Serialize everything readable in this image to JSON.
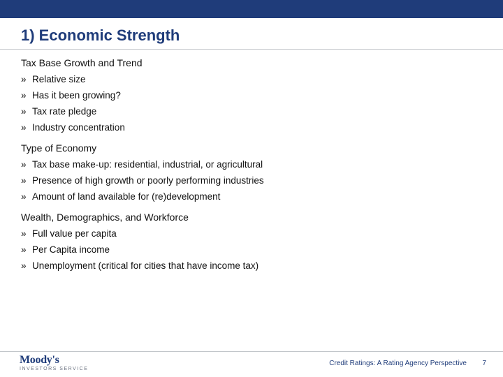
{
  "brand_color": "#1f3c7a",
  "title": "1) Economic Strength",
  "sections": [
    {
      "heading": "Tax Base Growth and Trend",
      "items": [
        "Relative size",
        "Has it been growing?",
        "Tax rate pledge",
        "Industry concentration"
      ]
    },
    {
      "heading": "Type of Economy",
      "items": [
        "Tax base make-up: residential, industrial, or agricultural",
        "Presence of high growth or poorly performing industries",
        "Amount of land available for (re)development"
      ]
    },
    {
      "heading": "Wealth, Demographics, and Workforce",
      "items": [
        "Full value per capita",
        "Per Capita income",
        "Unemployment (critical for cities that have income tax)"
      ]
    }
  ],
  "logo": {
    "main": "Moody's",
    "sub": "INVESTORS SERVICE"
  },
  "footer_text": "Credit Ratings:  A Rating Agency Perspective",
  "page_number": "7"
}
